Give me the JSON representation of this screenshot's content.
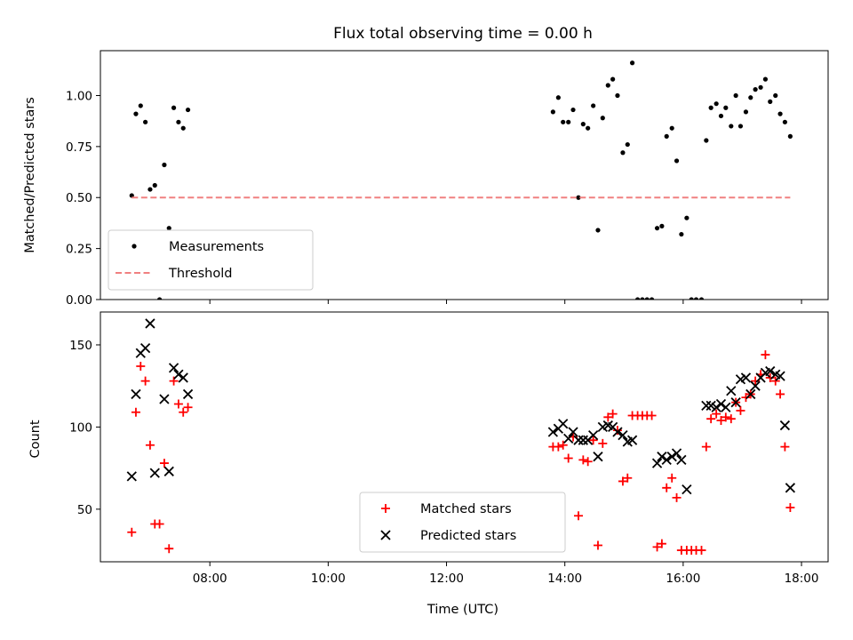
{
  "chart_data": [
    {
      "type": "scatter",
      "title": "Flux total observing time = 0.00 h",
      "ylabel": "Matched/Predicted stars",
      "xlabel": "",
      "xlim": [
        6.15,
        18.45
      ],
      "ylim": [
        0,
        1.22
      ],
      "x_ticks": [
        "08:00",
        "10:00",
        "12:00",
        "14:00",
        "16:00",
        "18:00"
      ],
      "x_tick_values": [
        8,
        10,
        12,
        14,
        16,
        18
      ],
      "x_tick_labels_visible": false,
      "y_ticks": [
        "0.00",
        "0.25",
        "0.50",
        "0.75",
        "1.00"
      ],
      "y_tick_values": [
        0,
        0.25,
        0.5,
        0.75,
        1.0
      ],
      "grid": false,
      "legend_position": "lower left",
      "series": [
        {
          "name": "Measurements",
          "style": "points",
          "color": "#000000",
          "points": [
            [
              6.68,
              0.51
            ],
            [
              6.75,
              0.91
            ],
            [
              6.83,
              0.95
            ],
            [
              6.91,
              0.87
            ],
            [
              6.99,
              0.54
            ],
            [
              7.07,
              0.56
            ],
            [
              7.15,
              0.0
            ],
            [
              7.23,
              0.66
            ],
            [
              7.31,
              0.35
            ],
            [
              7.39,
              0.94
            ],
            [
              7.47,
              0.87
            ],
            [
              7.55,
              0.84
            ],
            [
              7.63,
              0.93
            ],
            [
              13.8,
              0.92
            ],
            [
              13.89,
              0.99
            ],
            [
              13.97,
              0.87
            ],
            [
              14.06,
              0.87
            ],
            [
              14.14,
              0.93
            ],
            [
              14.23,
              0.5
            ],
            [
              14.31,
              0.86
            ],
            [
              14.39,
              0.84
            ],
            [
              14.48,
              0.95
            ],
            [
              14.56,
              0.34
            ],
            [
              14.64,
              0.89
            ],
            [
              14.73,
              1.05
            ],
            [
              14.81,
              1.08
            ],
            [
              14.89,
              1.0
            ],
            [
              14.98,
              0.72
            ],
            [
              15.06,
              0.76
            ],
            [
              15.14,
              1.16
            ],
            [
              15.23,
              0.0
            ],
            [
              15.31,
              0.0
            ],
            [
              15.39,
              0.0
            ],
            [
              15.47,
              0.0
            ],
            [
              15.56,
              0.35
            ],
            [
              15.64,
              0.36
            ],
            [
              15.72,
              0.8
            ],
            [
              15.81,
              0.84
            ],
            [
              15.89,
              0.68
            ],
            [
              15.97,
              0.32
            ],
            [
              16.06,
              0.4
            ],
            [
              16.14,
              0.0
            ],
            [
              16.22,
              0.0
            ],
            [
              16.31,
              0.0
            ],
            [
              16.39,
              0.78
            ],
            [
              16.47,
              0.94
            ],
            [
              16.56,
              0.96
            ],
            [
              16.64,
              0.9
            ],
            [
              16.72,
              0.94
            ],
            [
              16.81,
              0.85
            ],
            [
              16.89,
              1.0
            ],
            [
              16.97,
              0.85
            ],
            [
              17.06,
              0.92
            ],
            [
              17.14,
              0.99
            ],
            [
              17.22,
              1.03
            ],
            [
              17.31,
              1.04
            ],
            [
              17.39,
              1.08
            ],
            [
              17.47,
              0.97
            ],
            [
              17.56,
              1.0
            ],
            [
              17.64,
              0.91
            ],
            [
              17.72,
              0.87
            ],
            [
              17.81,
              0.8
            ]
          ]
        },
        {
          "name": "Threshold",
          "style": "dashed-line",
          "color": "#f08080",
          "points": [
            [
              6.68,
              0.5
            ],
            [
              17.81,
              0.5
            ]
          ]
        }
      ]
    },
    {
      "type": "scatter",
      "title": "",
      "ylabel": "Count",
      "xlabel": "Time (UTC)",
      "xlim": [
        6.15,
        18.45
      ],
      "ylim": [
        18,
        170
      ],
      "x_ticks": [
        "08:00",
        "10:00",
        "12:00",
        "14:00",
        "16:00",
        "18:00"
      ],
      "x_tick_values": [
        8,
        10,
        12,
        14,
        16,
        18
      ],
      "x_tick_labels_visible": true,
      "y_ticks": [
        "50",
        "100",
        "150"
      ],
      "y_tick_values": [
        50,
        100,
        150
      ],
      "grid": false,
      "legend_position": "lower center",
      "series": [
        {
          "name": "Matched stars",
          "style": "plus",
          "color": "#ff0000",
          "points": [
            [
              6.68,
              36
            ],
            [
              6.75,
              109
            ],
            [
              6.83,
              137
            ],
            [
              6.91,
              128
            ],
            [
              6.99,
              89
            ],
            [
              7.07,
              41
            ],
            [
              7.15,
              41
            ],
            [
              7.23,
              78
            ],
            [
              7.31,
              26
            ],
            [
              7.39,
              128
            ],
            [
              7.47,
              114
            ],
            [
              7.55,
              109
            ],
            [
              7.63,
              112
            ],
            [
              13.8,
              88
            ],
            [
              13.89,
              88
            ],
            [
              13.97,
              89
            ],
            [
              14.06,
              81
            ],
            [
              14.14,
              94
            ],
            [
              14.23,
              46
            ],
            [
              14.31,
              80
            ],
            [
              14.39,
              79
            ],
            [
              14.48,
              92
            ],
            [
              14.56,
              28
            ],
            [
              14.64,
              90
            ],
            [
              14.73,
              106
            ],
            [
              14.81,
              108
            ],
            [
              14.89,
              98
            ],
            [
              14.98,
              67
            ],
            [
              15.06,
              69
            ],
            [
              15.14,
              107
            ],
            [
              15.23,
              107
            ],
            [
              15.31,
              107
            ],
            [
              15.39,
              107
            ],
            [
              15.47,
              107
            ],
            [
              15.56,
              27
            ],
            [
              15.64,
              29
            ],
            [
              15.72,
              63
            ],
            [
              15.81,
              69
            ],
            [
              15.89,
              57
            ],
            [
              15.97,
              25
            ],
            [
              16.06,
              25
            ],
            [
              16.14,
              25
            ],
            [
              16.22,
              25
            ],
            [
              16.31,
              25
            ],
            [
              16.39,
              88
            ],
            [
              16.47,
              105
            ],
            [
              16.56,
              108
            ],
            [
              16.64,
              104
            ],
            [
              16.72,
              106
            ],
            [
              16.81,
              105
            ],
            [
              16.89,
              115
            ],
            [
              16.97,
              110
            ],
            [
              17.06,
              118
            ],
            [
              17.14,
              120
            ],
            [
              17.22,
              128
            ],
            [
              17.31,
              132
            ],
            [
              17.39,
              144
            ],
            [
              17.47,
              130
            ],
            [
              17.56,
              128
            ],
            [
              17.64,
              120
            ],
            [
              17.72,
              88
            ],
            [
              17.81,
              51
            ]
          ]
        },
        {
          "name": "Predicted stars",
          "style": "cross",
          "color": "#000000",
          "points": [
            [
              6.68,
              70
            ],
            [
              6.75,
              120
            ],
            [
              6.83,
              145
            ],
            [
              6.91,
              148
            ],
            [
              6.99,
              163
            ],
            [
              7.07,
              72
            ],
            [
              7.23,
              117
            ],
            [
              7.31,
              73
            ],
            [
              7.39,
              136
            ],
            [
              7.47,
              132
            ],
            [
              7.55,
              130
            ],
            [
              7.63,
              120
            ],
            [
              13.8,
              97
            ],
            [
              13.89,
              99
            ],
            [
              13.97,
              102
            ],
            [
              14.06,
              93
            ],
            [
              14.14,
              97
            ],
            [
              14.23,
              92
            ],
            [
              14.31,
              92
            ],
            [
              14.39,
              92
            ],
            [
              14.48,
              95
            ],
            [
              14.56,
              82
            ],
            [
              14.64,
              100
            ],
            [
              14.73,
              101
            ],
            [
              14.81,
              100
            ],
            [
              14.89,
              97
            ],
            [
              14.98,
              95
            ],
            [
              15.06,
              91
            ],
            [
              15.14,
              92
            ],
            [
              15.56,
              78
            ],
            [
              15.64,
              82
            ],
            [
              15.72,
              80
            ],
            [
              15.81,
              82
            ],
            [
              15.89,
              84
            ],
            [
              15.97,
              80
            ],
            [
              16.06,
              62
            ],
            [
              16.39,
              113
            ],
            [
              16.47,
              113
            ],
            [
              16.56,
              112
            ],
            [
              16.64,
              114
            ],
            [
              16.72,
              112
            ],
            [
              16.81,
              122
            ],
            [
              16.89,
              115
            ],
            [
              16.97,
              129
            ],
            [
              17.06,
              130
            ],
            [
              17.14,
              120
            ],
            [
              17.22,
              125
            ],
            [
              17.31,
              130
            ],
            [
              17.39,
              133
            ],
            [
              17.47,
              134
            ],
            [
              17.56,
              132
            ],
            [
              17.64,
              131
            ],
            [
              17.72,
              101
            ],
            [
              17.81,
              63
            ]
          ]
        }
      ]
    }
  ]
}
